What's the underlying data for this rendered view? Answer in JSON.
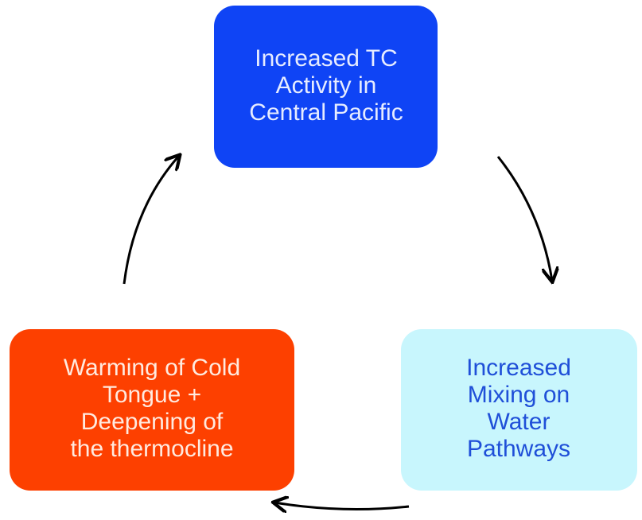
{
  "nodes": [
    {
      "label": [
        "Increased TC",
        "Activity in",
        "Central Pacific"
      ]
    },
    {
      "label": [
        "Increased",
        "Mixing on",
        "Water",
        "Pathways"
      ]
    },
    {
      "label": [
        "Warming of Cold",
        "Tongue +",
        "Deepening of",
        "the thermocline"
      ]
    }
  ]
}
